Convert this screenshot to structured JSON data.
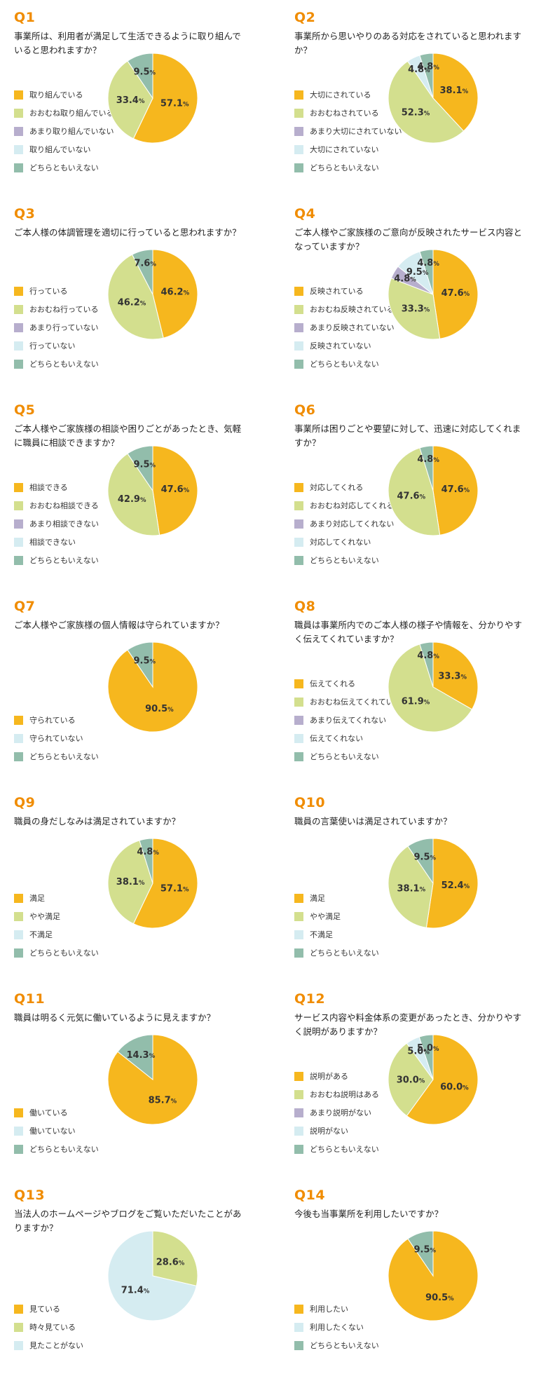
{
  "colors": {
    "orange": "#f6b71e",
    "lime": "#d3df8e",
    "purple": "#b7aecd",
    "lightblue": "#d5ecf1",
    "teal": "#92bdab",
    "question_number": "#f08c00"
  },
  "percent_symbol": "%",
  "chart_data": [
    {
      "type": "pie",
      "id": "Q1",
      "title": "事業所は、利用者が満足して生活できるように取り組んでいると思われますか？",
      "categories": [
        "取り組んでいる",
        "おおむね取り組んでいる",
        "あまり取り組んでいない",
        "取り組んでいない",
        "どちらともいえない"
      ],
      "values": [
        57.1,
        33.4,
        0,
        0,
        9.5
      ],
      "colors": [
        "#f6b71e",
        "#d3df8e",
        "#b7aecd",
        "#d5ecf1",
        "#92bdab"
      ]
    },
    {
      "type": "pie",
      "id": "Q2",
      "title": "事業所から思いやりのある対応をされていると思われますか？",
      "categories": [
        "大切にされている",
        "おおむねされている",
        "あまり大切にされていない",
        "大切にされていない",
        "どちらともいえない"
      ],
      "values": [
        38.1,
        52.3,
        0,
        4.8,
        4.8
      ],
      "colors": [
        "#f6b71e",
        "#d3df8e",
        "#b7aecd",
        "#d5ecf1",
        "#92bdab"
      ]
    },
    {
      "type": "pie",
      "id": "Q3",
      "title": "ご本人様の体調管理を適切に行っていると思われますか？",
      "categories": [
        "行っている",
        "おおむね行っている",
        "あまり行っていない",
        "行っていない",
        "どちらともいえない"
      ],
      "values": [
        46.2,
        46.2,
        0,
        0,
        7.6
      ],
      "colors": [
        "#f6b71e",
        "#d3df8e",
        "#b7aecd",
        "#d5ecf1",
        "#92bdab"
      ]
    },
    {
      "type": "pie",
      "id": "Q4",
      "title": "ご本人様やご家族様のご意向が反映されたサービス内容となっていますか？",
      "categories": [
        "反映されている",
        "おおむね反映されている",
        "あまり反映されていない",
        "反映されていない",
        "どちらともいえない"
      ],
      "values": [
        47.6,
        33.3,
        4.8,
        9.5,
        4.8
      ],
      "colors": [
        "#f6b71e",
        "#d3df8e",
        "#b7aecd",
        "#d5ecf1",
        "#92bdab"
      ]
    },
    {
      "type": "pie",
      "id": "Q5",
      "title": "ご本人様やご家族様の相談や困りごとがあったとき、気軽に職員に相談できますか？",
      "categories": [
        "相談できる",
        "おおむね相談できる",
        "あまり相談できない",
        "相談できない",
        "どちらともいえない"
      ],
      "values": [
        47.6,
        42.9,
        0,
        0,
        9.5
      ],
      "colors": [
        "#f6b71e",
        "#d3df8e",
        "#b7aecd",
        "#d5ecf1",
        "#92bdab"
      ]
    },
    {
      "type": "pie",
      "id": "Q6",
      "title": "事業所は困りごとや要望に対して、迅速に対応してくれますか？",
      "categories": [
        "対応してくれる",
        "おおむね対応してくれる",
        "あまり対応してくれない",
        "対応してくれない",
        "どちらともいえない"
      ],
      "values": [
        47.6,
        47.6,
        0,
        0,
        4.8
      ],
      "colors": [
        "#f6b71e",
        "#d3df8e",
        "#b7aecd",
        "#d5ecf1",
        "#92bdab"
      ]
    },
    {
      "type": "pie",
      "id": "Q7",
      "title": "ご本人様やご家族様の個人情報は守られていますか？",
      "categories": [
        "守られている",
        "守られていない",
        "どちらともいえない"
      ],
      "values": [
        90.5,
        0,
        9.5
      ],
      "colors": [
        "#f6b71e",
        "#d5ecf1",
        "#92bdab"
      ]
    },
    {
      "type": "pie",
      "id": "Q8",
      "title": "職員は事業所内でのご本人様の様子や情報を、分かりやすく伝えてくれていますか？",
      "categories": [
        "伝えてくれる",
        "おおむね伝えてくれている",
        "あまり伝えてくれない",
        "伝えてくれない",
        "どちらともいえない"
      ],
      "values": [
        33.3,
        61.9,
        0,
        0,
        4.8
      ],
      "colors": [
        "#f6b71e",
        "#d3df8e",
        "#b7aecd",
        "#d5ecf1",
        "#92bdab"
      ]
    },
    {
      "type": "pie",
      "id": "Q9",
      "title": "職員の身だしなみは満足されていますか？",
      "categories": [
        "満足",
        "やや満足",
        "不満足",
        "どちらともいえない"
      ],
      "values": [
        57.1,
        38.1,
        0,
        4.8
      ],
      "colors": [
        "#f6b71e",
        "#d3df8e",
        "#d5ecf1",
        "#92bdab"
      ]
    },
    {
      "type": "pie",
      "id": "Q10",
      "title": "職員の言葉使いは満足されていますか？",
      "categories": [
        "満足",
        "やや満足",
        "不満足",
        "どちらともいえない"
      ],
      "values": [
        52.4,
        38.1,
        0,
        9.5
      ],
      "colors": [
        "#f6b71e",
        "#d3df8e",
        "#d5ecf1",
        "#92bdab"
      ]
    },
    {
      "type": "pie",
      "id": "Q11",
      "title": "職員は明るく元気に働いているように見えますか？",
      "categories": [
        "働いている",
        "働いていない",
        "どちらともいえない"
      ],
      "values": [
        85.7,
        0,
        14.3
      ],
      "colors": [
        "#f6b71e",
        "#d5ecf1",
        "#92bdab"
      ]
    },
    {
      "type": "pie",
      "id": "Q12",
      "title": "サービス内容や料金体系の変更があったとき、分かりやすく説明がありますか？",
      "categories": [
        "説明がある",
        "おおむね説明はある",
        "あまり説明がない",
        "説明がない",
        "どちらともいえない"
      ],
      "values": [
        60.0,
        30.0,
        0,
        5.0,
        5.0
      ],
      "colors": [
        "#f6b71e",
        "#d3df8e",
        "#b7aecd",
        "#d5ecf1",
        "#92bdab"
      ]
    },
    {
      "type": "pie",
      "id": "Q13",
      "title": "当法人のホームページやブログをご覧いただいたことがありますか？",
      "categories": [
        "見ている",
        "時々見ている",
        "見たことがない"
      ],
      "values": [
        0,
        28.6,
        71.4
      ],
      "colors": [
        "#f6b71e",
        "#d3df8e",
        "#d5ecf1"
      ]
    },
    {
      "type": "pie",
      "id": "Q14",
      "title": "今後も当事業所を利用したいですか？",
      "categories": [
        "利用したい",
        "利用したくない",
        "どちらともいえない"
      ],
      "values": [
        90.5,
        0,
        9.5
      ],
      "colors": [
        "#f6b71e",
        "#d5ecf1",
        "#92bdab"
      ]
    }
  ]
}
